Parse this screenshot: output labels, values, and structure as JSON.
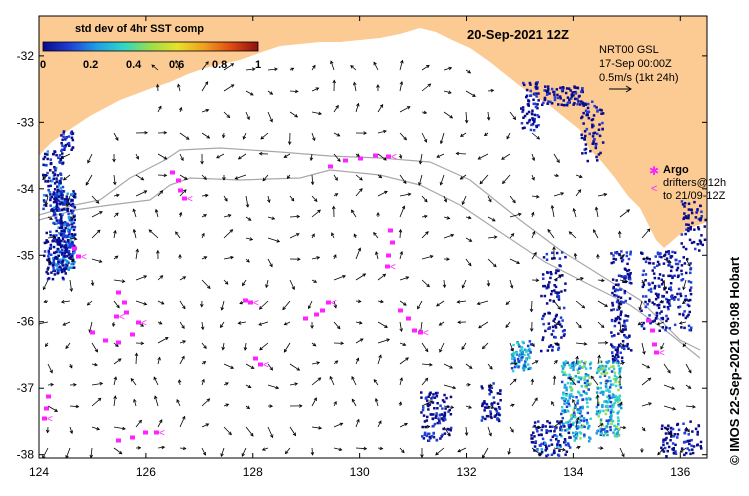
{
  "date_title": "20-Sep-2021 12Z",
  "colorbar": {
    "title": "std dev of 4hr SST comp",
    "ticks": [
      "0",
      "0.2",
      "0.4",
      "0.6",
      "0.8",
      "1"
    ],
    "colors": [
      "#0a0a8c",
      "#1f3fd6",
      "#1f9ee6",
      "#2fd6c8",
      "#9ade4a",
      "#e8e02a",
      "#f0a020",
      "#e04a12",
      "#8c1010"
    ]
  },
  "current_note": {
    "line1": "NRT00 GSL",
    "line2": "17-Sep 00:00Z",
    "line3": "0.5m/s (1kt 24h)"
  },
  "argo_note": {
    "title": "Argo",
    "line1": "drifters@12h",
    "line2": "to 21/09-12Z"
  },
  "credit": "© IMOS 22-Sep-2021 09:08 Hobart",
  "axes": {
    "x_ticks": [
      "124",
      "126",
      "128",
      "130",
      "132",
      "134",
      "136"
    ],
    "y_ticks": [
      "-32",
      "-33",
      "-34",
      "-35",
      "-36",
      "-37",
      "-38"
    ],
    "lon_range": [
      124,
      136.5
    ],
    "lat_range": [
      -31.4,
      -38.05
    ]
  },
  "colors": {
    "land": "#fccb94",
    "ocean": "#ffffff",
    "argo": "#ff22ff",
    "track": "#a8a8a8",
    "data_low": "#0a2a9c",
    "data_mid": "#2ab6c8",
    "data_high": "#9ade4a"
  }
}
